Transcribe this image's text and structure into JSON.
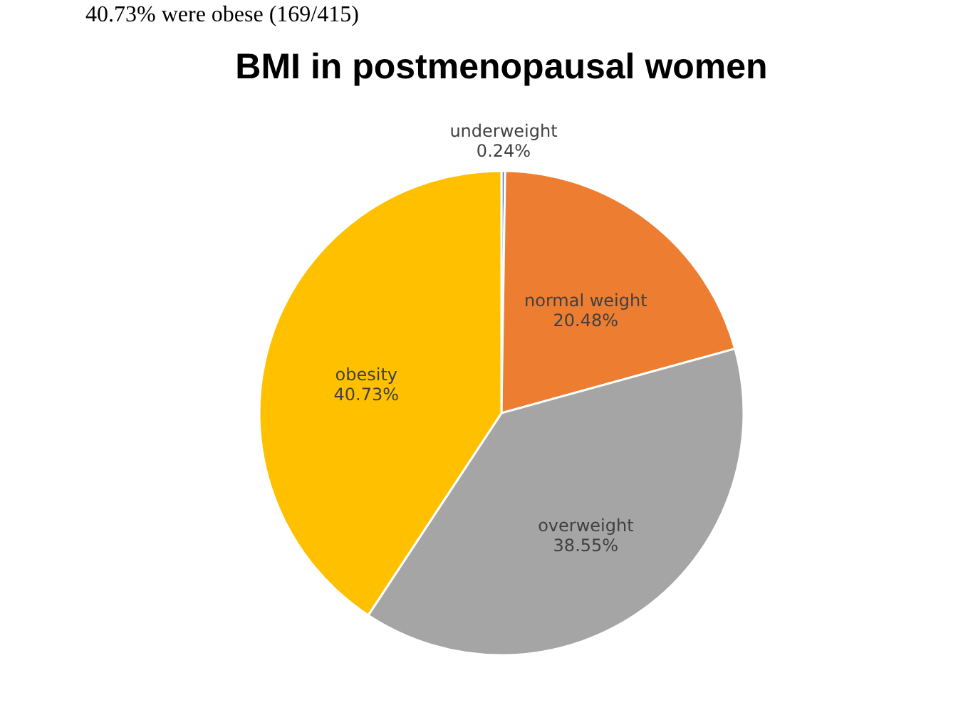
{
  "chart_data": {
    "type": "pie",
    "title": "BMI in postmenopausal women",
    "categories": [
      "underweight",
      "normal weight",
      "overweight",
      "obesity"
    ],
    "values": [
      0.24,
      20.48,
      38.55,
      40.73
    ],
    "colors": [
      "#4472c4",
      "#ed7d31",
      "#a5a5a5",
      "#ffc000"
    ],
    "value_labels": [
      "0.24%",
      "20.48%",
      "38.55%",
      "40.73%"
    ],
    "annotations": [
      "40.73% were obese (169/415)"
    ]
  }
}
